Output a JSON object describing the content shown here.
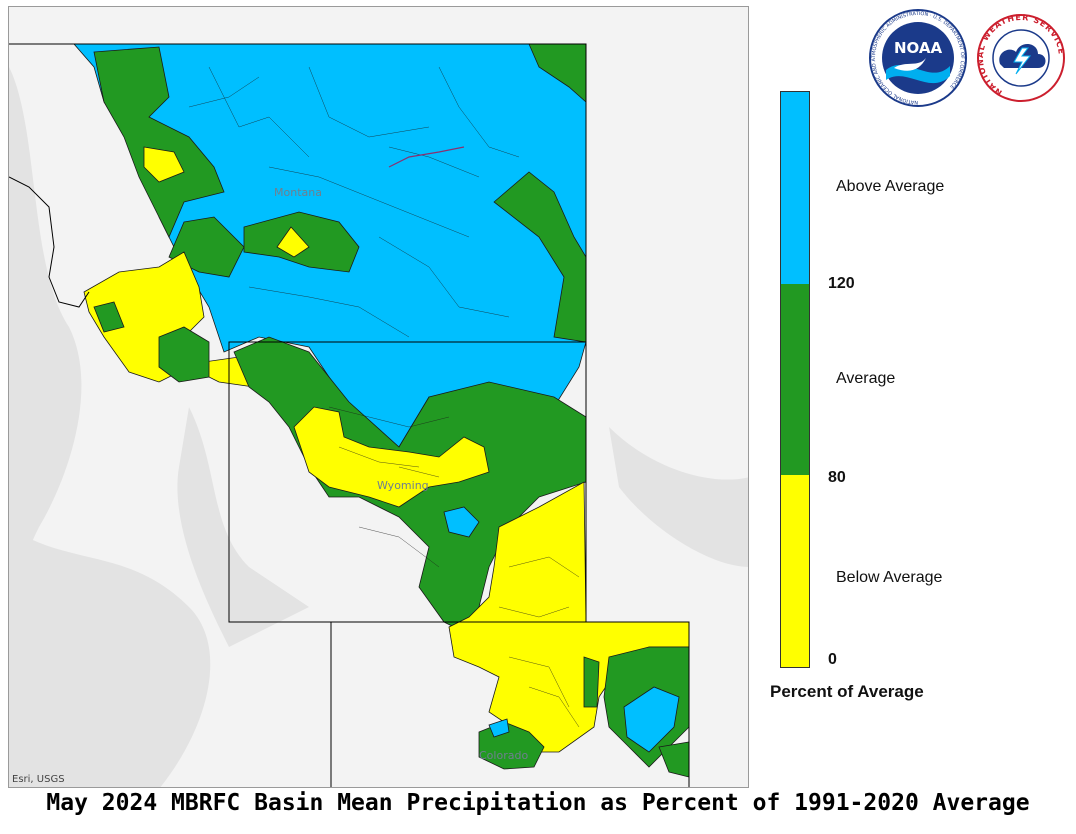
{
  "map": {
    "state_labels": {
      "montana": "Montana",
      "wyoming": "Wyoming",
      "colorado": "Colorado"
    },
    "credit": "Esri, USGS",
    "colors": {
      "above": "#00bfff",
      "average": "#229922",
      "below": "#ffff00",
      "basemap": "#f2f2f2",
      "relief": "#e2e2e2"
    }
  },
  "logos": {
    "noaa": {
      "center_text": "NOAA",
      "ring_text": "NATIONAL OCEANIC AND ATMOSPHERIC ADMINISTRATION · U.S. DEPARTMENT OF COMMERCE"
    },
    "nws": {
      "ring_text": "NATIONAL WEATHER SERVICE"
    }
  },
  "legend": {
    "categories": [
      {
        "label": "Above Average",
        "color": "#00bfff"
      },
      {
        "label": "Average",
        "color": "#229922"
      },
      {
        "label": "Below Average",
        "color": "#ffff00"
      }
    ],
    "thresholds": [
      "120",
      "80",
      "0"
    ],
    "title": "Percent of Average"
  },
  "caption": "May 2024 MBRFC Basin Mean Precipitation as Percent of 1991-2020 Average"
}
